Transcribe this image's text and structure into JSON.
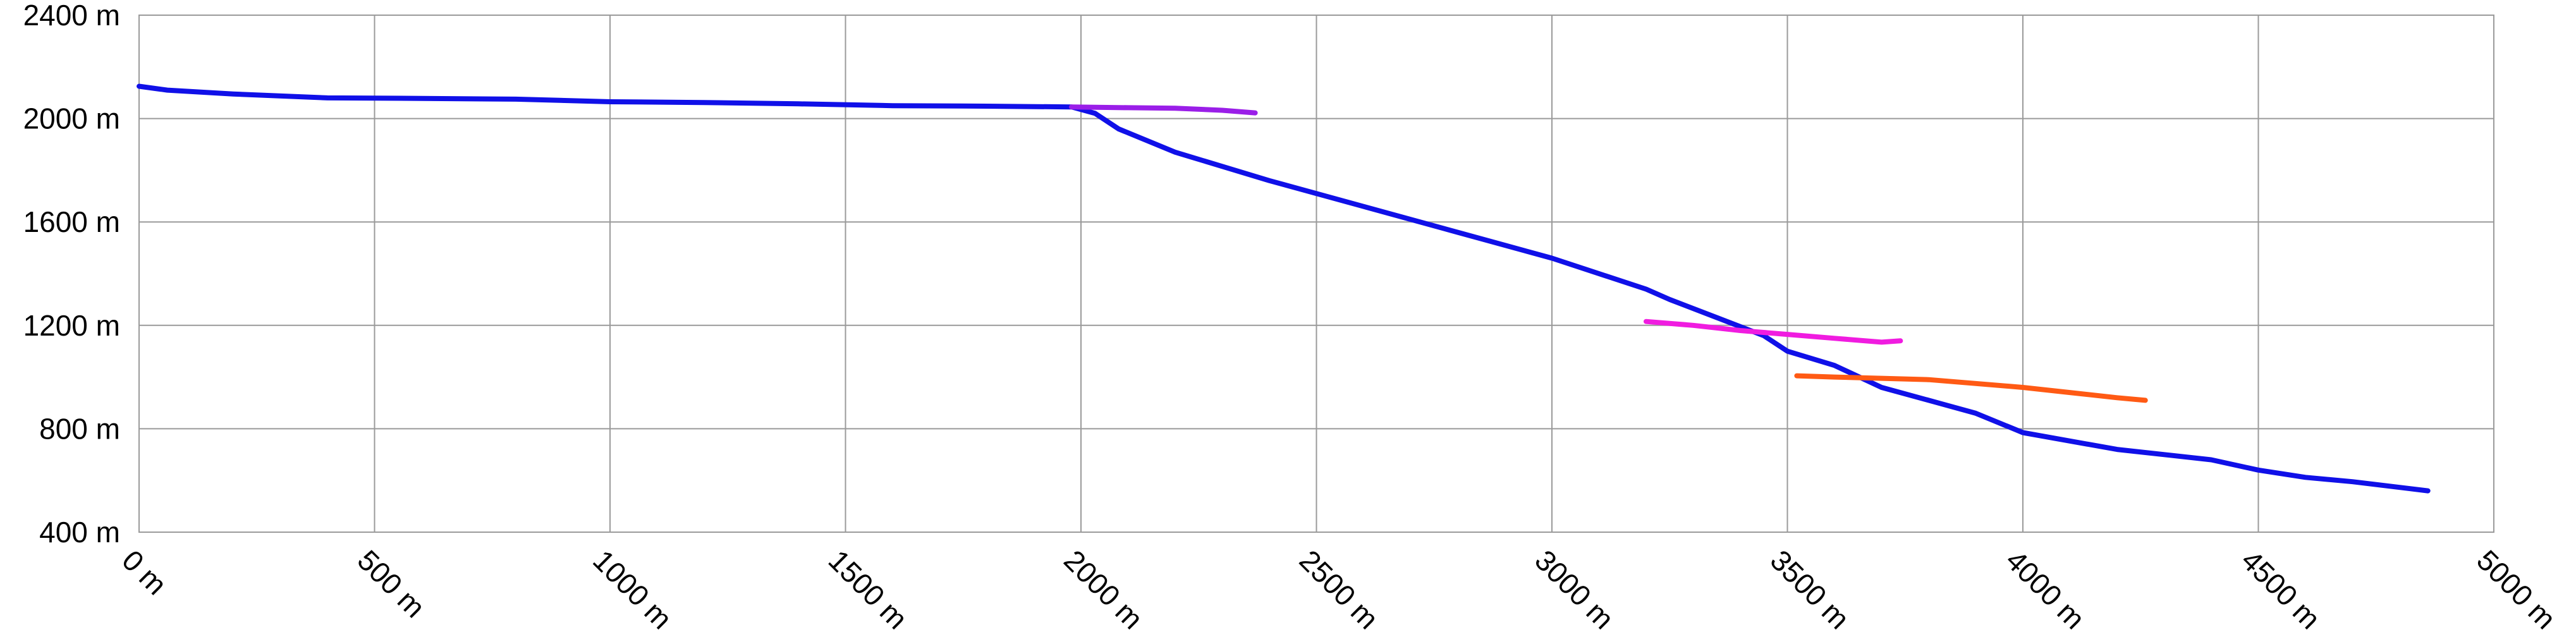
{
  "chart_data": {
    "type": "line",
    "title": "",
    "xlabel": "",
    "ylabel": "",
    "xlim": [
      0,
      5000
    ],
    "ylim": [
      400,
      2400
    ],
    "grid": true,
    "legend": "none",
    "x_ticks": [
      {
        "value": 0,
        "label": "0 m"
      },
      {
        "value": 500,
        "label": "500 m"
      },
      {
        "value": 1000,
        "label": "1000 m"
      },
      {
        "value": 1500,
        "label": "1500 m"
      },
      {
        "value": 2000,
        "label": "2000 m"
      },
      {
        "value": 2500,
        "label": "2500 m"
      },
      {
        "value": 3000,
        "label": "3000 m"
      },
      {
        "value": 3500,
        "label": "3500 m"
      },
      {
        "value": 4000,
        "label": "4000 m"
      },
      {
        "value": 4500,
        "label": "4500 m"
      },
      {
        "value": 5000,
        "label": "5000 m"
      }
    ],
    "y_ticks": [
      {
        "value": 400,
        "label": "400 m"
      },
      {
        "value": 800,
        "label": "800 m"
      },
      {
        "value": 1200,
        "label": "1200 m"
      },
      {
        "value": 1600,
        "label": "1600 m"
      },
      {
        "value": 2000,
        "label": "2000 m"
      },
      {
        "value": 2400,
        "label": "2400 m"
      }
    ],
    "series": [
      {
        "color": "#1010e8",
        "points": [
          [
            0,
            2125
          ],
          [
            60,
            2110
          ],
          [
            200,
            2095
          ],
          [
            400,
            2080
          ],
          [
            600,
            2078
          ],
          [
            800,
            2075
          ],
          [
            1000,
            2065
          ],
          [
            1200,
            2062
          ],
          [
            1400,
            2057
          ],
          [
            1600,
            2050
          ],
          [
            1800,
            2048
          ],
          [
            1980,
            2045
          ],
          [
            2030,
            2020
          ],
          [
            2080,
            1960
          ],
          [
            2200,
            1870
          ],
          [
            2400,
            1760
          ],
          [
            2600,
            1660
          ],
          [
            2800,
            1560
          ],
          [
            3000,
            1460
          ],
          [
            3200,
            1340
          ],
          [
            3250,
            1300
          ],
          [
            3350,
            1230
          ],
          [
            3450,
            1160
          ],
          [
            3500,
            1100
          ],
          [
            3600,
            1045
          ],
          [
            3700,
            960
          ],
          [
            3800,
            910
          ],
          [
            3900,
            860
          ],
          [
            4000,
            785
          ],
          [
            4200,
            720
          ],
          [
            4400,
            680
          ],
          [
            4500,
            640
          ],
          [
            4600,
            612
          ],
          [
            4700,
            595
          ],
          [
            4860,
            560
          ]
        ]
      },
      {
        "color": "#9a1ee8",
        "points": [
          [
            1980,
            2045
          ],
          [
            2100,
            2042
          ],
          [
            2200,
            2040
          ],
          [
            2300,
            2032
          ],
          [
            2370,
            2022
          ]
        ]
      },
      {
        "color": "#f01ce0",
        "points": [
          [
            3200,
            1215
          ],
          [
            3300,
            1200
          ],
          [
            3400,
            1180
          ],
          [
            3500,
            1165
          ],
          [
            3600,
            1150
          ],
          [
            3700,
            1135
          ],
          [
            3740,
            1140
          ]
        ]
      },
      {
        "color": "#ff5a14",
        "points": [
          [
            3520,
            1005
          ],
          [
            3600,
            1000
          ],
          [
            3700,
            995
          ],
          [
            3800,
            990
          ],
          [
            3900,
            975
          ],
          [
            4000,
            960
          ],
          [
            4100,
            940
          ],
          [
            4200,
            920
          ],
          [
            4260,
            910
          ]
        ]
      }
    ]
  }
}
